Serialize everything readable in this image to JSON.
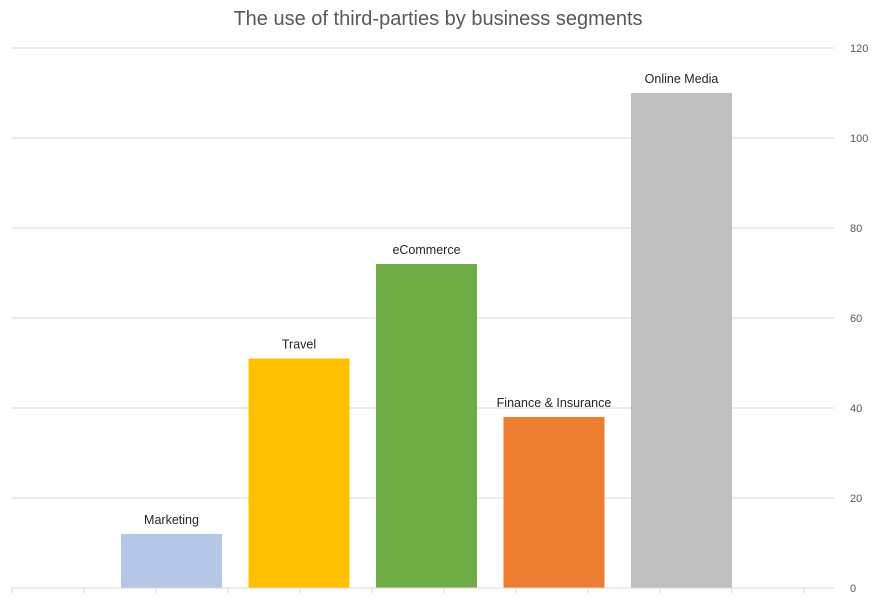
{
  "chart_data": {
    "type": "bar",
    "title": "The use of third-parties by business segments",
    "xlabel": "",
    "ylabel": "",
    "categories": [
      "Marketing",
      "Travel",
      "eCommerce",
      "Finance & Insurance",
      "Online Media"
    ],
    "values": [
      12,
      51,
      72,
      38,
      110
    ],
    "colors": [
      "#b4c7e7",
      "#ffc000",
      "#70ad47",
      "#ed7d31",
      "#bfbfbf"
    ],
    "ylim": [
      0,
      120
    ],
    "yticks": [
      "0",
      "20",
      "40",
      "60",
      "80",
      "100",
      "120"
    ],
    "y_axis_position": "right",
    "grid": true,
    "legend": "none"
  }
}
